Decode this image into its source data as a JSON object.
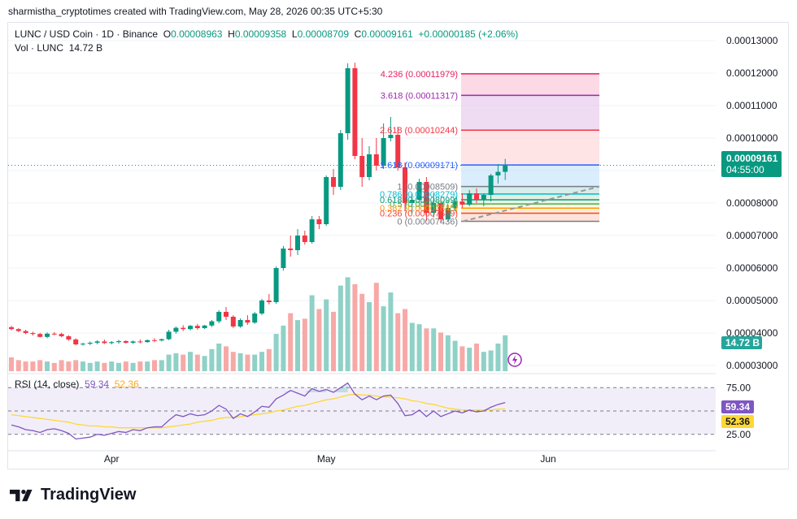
{
  "header": {
    "credit": "sharmistha_cryptotimes created with TradingView.com, May 28, 2026 00:35 UTC+5:30"
  },
  "legend": {
    "symbol": "LUNC / USD Coin · 1D · Binance",
    "o_label": "O",
    "o_value": "0.00008963",
    "h_label": "H",
    "h_value": "0.00009358",
    "l_label": "L",
    "l_value": "0.00008709",
    "c_label": "C",
    "c_value": "0.00009161",
    "change": "+0.00000185 (+2.06%)",
    "vol_label": "Vol · LUNC",
    "vol_value": "14.72 B"
  },
  "rsi_legend": {
    "label": "RSI (14, close)",
    "rsi_value": "59.34",
    "ma_value": "52.36"
  },
  "price_tag": {
    "price": "0.00009161",
    "countdown": "04:55:00"
  },
  "volume_tag": "14.72 B",
  "rsi_tags": {
    "rsi": "59.34",
    "ma": "52.36"
  },
  "rsi_axis": [
    "75.00",
    "25.00"
  ],
  "time_axis": [
    "Apr",
    "May",
    "Jun"
  ],
  "colors": {
    "up": "#089981",
    "down": "#f23645",
    "vol_up": "#8fd1c7",
    "vol_down": "#f7a9a7",
    "rsi_line": "#7e57c2",
    "rsi_ma": "#fdd835"
  },
  "fib": [
    {
      "ratio": "4.236",
      "price": "0.00011979",
      "color": "#e91e63"
    },
    {
      "ratio": "3.618",
      "price": "0.00011317",
      "color": "#9c27b0"
    },
    {
      "ratio": "2.618",
      "price": "0.00010244",
      "color": "#f23645"
    },
    {
      "ratio": "1.618",
      "price": "0.00009171",
      "color": "#2962ff"
    },
    {
      "ratio": "1",
      "price": "0.00008509",
      "color": "#787b86"
    },
    {
      "ratio": "0.786",
      "price": "0.00008279",
      "color": "#00bcd4"
    },
    {
      "ratio": "0.618",
      "price": "0.00008099",
      "color": "#089981"
    },
    {
      "ratio": "0.5",
      "price": "0.00007972",
      "color": "#4caf50"
    },
    {
      "ratio": "0.382",
      "price": "0.00007845",
      "color": "#ff9800"
    },
    {
      "ratio": "0.236",
      "price": "0.00007689",
      "color": "#f44336"
    },
    {
      "ratio": "0",
      "price": "0.00007436",
      "color": "#787b86"
    }
  ],
  "branding": {
    "name": "TradingView"
  },
  "chart_data": {
    "type": "candlestick",
    "title": "LUNC / USD Coin · 1D · Binance",
    "y_ticks": [
      "0.00013000",
      "0.00012000",
      "0.00011000",
      "0.00010000",
      "0.00009000",
      "0.00008000",
      "0.00007000",
      "0.00006000",
      "0.00005000",
      "0.00004000",
      "0.00003000"
    ],
    "ylim": [
      2.85e-05,
      0.0001325
    ],
    "x_labels": [
      "Apr",
      "May",
      "Jun"
    ],
    "candles": [
      [
        4.18e-05,
        4.22e-05,
        4.08e-05,
        4.12e-05
      ],
      [
        4.12e-05,
        4.15e-05,
        4.03e-05,
        4.06e-05
      ],
      [
        4.06e-05,
        4.1e-05,
        3.96e-05,
        4e-05
      ],
      [
        4e-05,
        4.04e-05,
        3.92e-05,
        3.97e-05
      ],
      [
        3.97e-05,
        4.01e-05,
        3.86e-05,
        3.88e-05
      ],
      [
        3.88e-05,
        4.02e-05,
        3.84e-05,
        3.98e-05
      ],
      [
        3.98e-05,
        4.03e-05,
        3.93e-05,
        3.97e-05
      ],
      [
        3.97e-05,
        4.01e-05,
        3.87e-05,
        3.9e-05
      ],
      [
        3.9e-05,
        3.93e-05,
        3.76e-05,
        3.8e-05
      ],
      [
        3.8e-05,
        3.84e-05,
        3.62e-05,
        3.65e-05
      ],
      [
        3.65e-05,
        3.7e-05,
        3.61e-05,
        3.67e-05
      ],
      [
        3.67e-05,
        3.74e-05,
        3.63e-05,
        3.7e-05
      ],
      [
        3.7e-05,
        3.78e-05,
        3.65e-05,
        3.74e-05
      ],
      [
        3.74e-05,
        3.8e-05,
        3.66e-05,
        3.69e-05
      ],
      [
        3.69e-05,
        3.75e-05,
        3.65e-05,
        3.72e-05
      ],
      [
        3.72e-05,
        3.79e-05,
        3.67e-05,
        3.75e-05
      ],
      [
        3.75e-05,
        3.78e-05,
        3.67e-05,
        3.7e-05
      ],
      [
        3.7e-05,
        3.77e-05,
        3.66e-05,
        3.74e-05
      ],
      [
        3.74e-05,
        3.8e-05,
        3.68e-05,
        3.72e-05
      ],
      [
        3.72e-05,
        3.8e-05,
        3.7e-05,
        3.78e-05
      ],
      [
        3.78e-05,
        3.84e-05,
        3.72e-05,
        3.77e-05
      ],
      [
        3.77e-05,
        3.83e-05,
        3.74e-05,
        3.81e-05
      ],
      [
        3.81e-05,
        4.1e-05,
        3.78e-05,
        4.04e-05
      ],
      [
        4.04e-05,
        4.2e-05,
        3.98e-05,
        4.16e-05
      ],
      [
        4.16e-05,
        4.24e-05,
        4.06e-05,
        4.12e-05
      ],
      [
        4.12e-05,
        4.25e-05,
        4.08e-05,
        4.22e-05
      ],
      [
        4.22e-05,
        4.28e-05,
        4.1e-05,
        4.15e-05
      ],
      [
        4.15e-05,
        4.25e-05,
        4.12e-05,
        4.23e-05
      ],
      [
        4.23e-05,
        4.4e-05,
        4.18e-05,
        4.36e-05
      ],
      [
        4.36e-05,
        4.7e-05,
        4.3e-05,
        4.65e-05
      ],
      [
        4.65e-05,
        4.8e-05,
        4.4e-05,
        4.5e-05
      ],
      [
        4.5e-05,
        4.55e-05,
        4.15e-05,
        4.2e-05
      ],
      [
        4.2e-05,
        4.45e-05,
        4.16e-05,
        4.4e-05
      ],
      [
        4.4e-05,
        4.55e-05,
        4.25e-05,
        4.32e-05
      ],
      [
        4.32e-05,
        4.65e-05,
        4.28e-05,
        4.6e-05
      ],
      [
        4.6e-05,
        5.05e-05,
        4.55e-05,
        5e-05
      ],
      [
        5e-05,
        5.2e-05,
        4.88e-05,
        4.95e-05
      ],
      [
        4.95e-05,
        6.05e-05,
        4.9e-05,
        6e-05
      ],
      [
        6e-05,
        6.68e-05,
        5.92e-05,
        6.6e-05
      ],
      [
        6.6e-05,
        7e-05,
        6.35e-05,
        6.55e-05
      ],
      [
        6.55e-05,
        7.2e-05,
        6.4e-05,
        7e-05
      ],
      [
        7e-05,
        7.15e-05,
        6.72e-05,
        6.8e-05
      ],
      [
        6.8e-05,
        7.6e-05,
        6.75e-05,
        7.5e-05
      ],
      [
        7.5e-05,
        7.6e-05,
        7.2e-05,
        7.35e-05
      ],
      [
        7.35e-05,
        8.85e-05,
        7.3e-05,
        8.8e-05
      ],
      [
        8.8e-05,
        9.05e-05,
        8.25e-05,
        8.5e-05
      ],
      [
        8.5e-05,
        0.0001025,
        8.4e-05,
        0.0001015
      ],
      [
        0.0001015,
        0.000123,
        9.95e-05,
        0.0001215
      ],
      [
        0.0001215,
        0.0001232,
        9.35e-05,
        9.45e-05
      ],
      [
        9.45e-05,
        0.0001,
        8.5e-05,
        8.8e-05
      ],
      [
        8.8e-05,
        9.75e-05,
        8.7e-05,
        9.5e-05
      ],
      [
        9.5e-05,
        0.0001,
        9e-05,
        9.15e-05
      ],
      [
        9.15e-05,
        0.0001045,
        9.05e-05,
        0.0001
      ],
      [
        0.0001,
        0.0001065,
        9.9e-05,
        0.000101
      ],
      [
        0.000101,
        0.0001035,
        9e-05,
        9.1e-05
      ],
      [
        9.1e-05,
        9.25e-05,
        7.75e-05,
        8e-05
      ],
      [
        8e-05,
        8.3e-05,
        7.7e-05,
        8.1e-05
      ],
      [
        8.1e-05,
        8.75e-05,
        7.8e-05,
        8.65e-05
      ],
      [
        8.65e-05,
        8.8e-05,
        7.45e-05,
        7.7e-05
      ],
      [
        7.7e-05,
        8.3e-05,
        7.55e-05,
        8e-05
      ],
      [
        8e-05,
        8.15e-05,
        7.4e-05,
        7.5e-05
      ],
      [
        7.5e-05,
        7.95e-05,
        7.44e-05,
        7.85e-05
      ],
      [
        7.85e-05,
        8.15e-05,
        7.75e-05,
        8.05e-05
      ],
      [
        8.05e-05,
        8.3e-05,
        7.85e-05,
        7.95e-05
      ],
      [
        7.95e-05,
        8.4e-05,
        7.9e-05,
        8.3e-05
      ],
      [
        8.3e-05,
        8.45e-05,
        8e-05,
        8.1e-05
      ],
      [
        8.1e-05,
        8.3e-05,
        7.9e-05,
        8.25e-05
      ],
      [
        8.25e-05,
        8.9e-05,
        8.05e-05,
        8.85e-05
      ],
      [
        8.85e-05,
        9.2e-05,
        8.6e-05,
        8.96e-05
      ],
      [
        8.96e-05,
        9.36e-05,
        8.71e-05,
        9.16e-05
      ]
    ],
    "volume_relative": [
      0.1,
      0.08,
      0.07,
      0.07,
      0.08,
      0.07,
      0.06,
      0.08,
      0.07,
      0.08,
      0.07,
      0.06,
      0.07,
      0.06,
      0.07,
      0.06,
      0.07,
      0.06,
      0.07,
      0.07,
      0.08,
      0.08,
      0.12,
      0.13,
      0.12,
      0.14,
      0.12,
      0.11,
      0.16,
      0.2,
      0.18,
      0.14,
      0.13,
      0.12,
      0.12,
      0.14,
      0.16,
      0.27,
      0.33,
      0.42,
      0.37,
      0.38,
      0.55,
      0.45,
      0.52,
      0.43,
      0.62,
      0.68,
      0.63,
      0.56,
      0.5,
      0.64,
      0.47,
      0.57,
      0.42,
      0.45,
      0.35,
      0.34,
      0.31,
      0.31,
      0.28,
      0.26,
      0.22,
      0.18,
      0.17,
      0.2,
      0.14,
      0.15,
      0.2,
      0.26
    ],
    "rsi": [
      35,
      33,
      30,
      29,
      27,
      30,
      31,
      29,
      26,
      20,
      21,
      22,
      25,
      24,
      26,
      28,
      27,
      30,
      29,
      32,
      33,
      33,
      40,
      46,
      44,
      47,
      45,
      46,
      50,
      56,
      52,
      42,
      47,
      44,
      49,
      55,
      54,
      63,
      67,
      72,
      69,
      66,
      74,
      71,
      73,
      70,
      75,
      80,
      68,
      62,
      66,
      62,
      66,
      67,
      58,
      45,
      46,
      51,
      44,
      50,
      44,
      47,
      50,
      48,
      51,
      49,
      50,
      54,
      57,
      59
    ],
    "rsi_ma": [
      46,
      45,
      44,
      43,
      42,
      41,
      40,
      39,
      38,
      36,
      35,
      34,
      34,
      33,
      33,
      32,
      32,
      32,
      32,
      32,
      32,
      32,
      33,
      34,
      35,
      36,
      38,
      39,
      40,
      42,
      43,
      43,
      44,
      45,
      46,
      47,
      48,
      50,
      51,
      53,
      55,
      56,
      58,
      60,
      62,
      63,
      65,
      67,
      68,
      67,
      67,
      66,
      65,
      65,
      64,
      63,
      61,
      60,
      58,
      57,
      55,
      53,
      52,
      51,
      51,
      51,
      51,
      51,
      52,
      52
    ],
    "rsi_levels": [
      75,
      50,
      25
    ]
  }
}
